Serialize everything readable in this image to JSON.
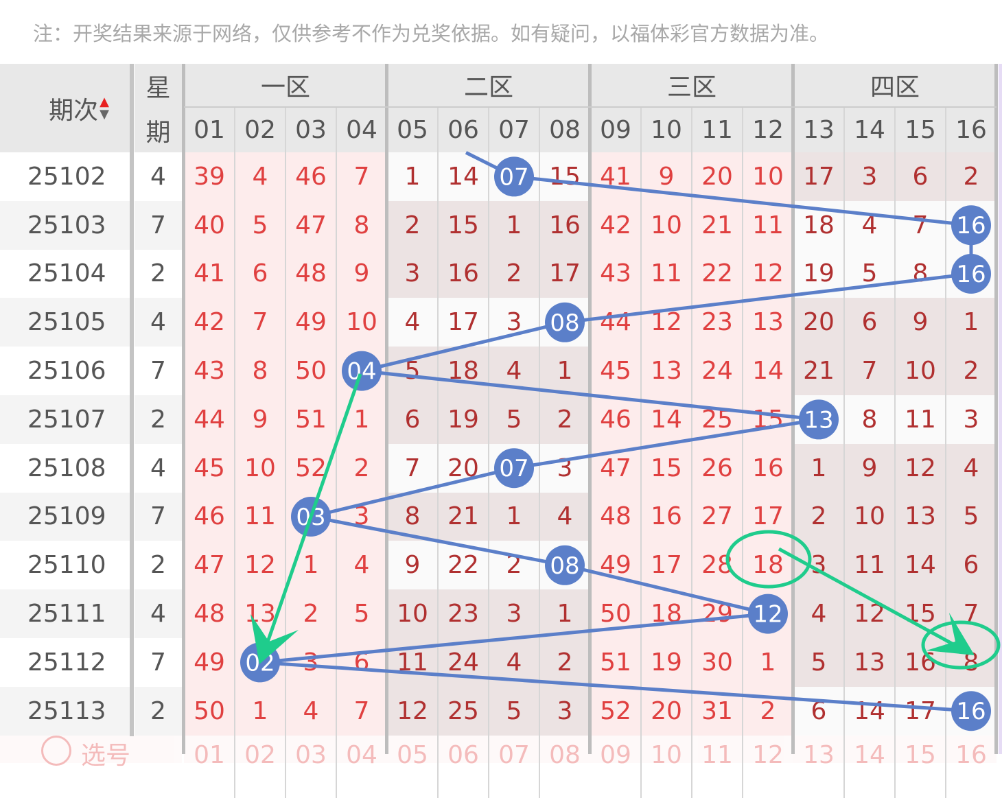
{
  "note": "注：开奖结果来源于网络，仅供参考不作为兑奖依据。如有疑问，以福体彩官方数据为准。",
  "header": {
    "period_label": "期次",
    "week_label_1": "星",
    "week_label_2": "期",
    "zones": [
      "一区",
      "二区",
      "三区",
      "四区"
    ],
    "columns": [
      "01",
      "02",
      "03",
      "04",
      "05",
      "06",
      "07",
      "08",
      "09",
      "10",
      "11",
      "12",
      "13",
      "14",
      "15",
      "16"
    ]
  },
  "rows": [
    {
      "period": "25102",
      "week": "4",
      "cells": [
        "39",
        "4",
        "46",
        "7",
        "1",
        "14",
        "07",
        "15",
        "41",
        "9",
        "20",
        "10",
        "17",
        "3",
        "6",
        "2"
      ],
      "hit": 7
    },
    {
      "period": "25103",
      "week": "7",
      "cells": [
        "40",
        "5",
        "47",
        "8",
        "2",
        "15",
        "1",
        "16",
        "42",
        "10",
        "21",
        "11",
        "18",
        "4",
        "7",
        "16"
      ],
      "hit": 16
    },
    {
      "period": "25104",
      "week": "2",
      "cells": [
        "41",
        "6",
        "48",
        "9",
        "3",
        "16",
        "2",
        "17",
        "43",
        "11",
        "22",
        "12",
        "19",
        "5",
        "8",
        "16"
      ],
      "hit": 16
    },
    {
      "period": "25105",
      "week": "4",
      "cells": [
        "42",
        "7",
        "49",
        "10",
        "4",
        "17",
        "3",
        "08",
        "44",
        "12",
        "23",
        "13",
        "20",
        "6",
        "9",
        "1"
      ],
      "hit": 8
    },
    {
      "period": "25106",
      "week": "7",
      "cells": [
        "43",
        "8",
        "50",
        "04",
        "5",
        "18",
        "4",
        "1",
        "45",
        "13",
        "24",
        "14",
        "21",
        "7",
        "10",
        "2"
      ],
      "hit": 4
    },
    {
      "period": "25107",
      "week": "2",
      "cells": [
        "44",
        "9",
        "51",
        "1",
        "6",
        "19",
        "5",
        "2",
        "46",
        "14",
        "25",
        "15",
        "13",
        "8",
        "11",
        "3"
      ],
      "hit": 13
    },
    {
      "period": "25108",
      "week": "4",
      "cells": [
        "45",
        "10",
        "52",
        "2",
        "7",
        "20",
        "07",
        "3",
        "47",
        "15",
        "26",
        "16",
        "1",
        "9",
        "12",
        "4"
      ],
      "hit": 7
    },
    {
      "period": "25109",
      "week": "7",
      "cells": [
        "46",
        "11",
        "03",
        "3",
        "8",
        "21",
        "1",
        "4",
        "48",
        "16",
        "27",
        "17",
        "2",
        "10",
        "13",
        "5"
      ],
      "hit": 3
    },
    {
      "period": "25110",
      "week": "2",
      "cells": [
        "47",
        "12",
        "1",
        "4",
        "9",
        "22",
        "2",
        "08",
        "49",
        "17",
        "28",
        "18",
        "3",
        "11",
        "14",
        "6"
      ],
      "hit": 8
    },
    {
      "period": "25111",
      "week": "4",
      "cells": [
        "48",
        "13",
        "2",
        "5",
        "10",
        "23",
        "3",
        "1",
        "50",
        "18",
        "29",
        "12",
        "4",
        "12",
        "15",
        "7"
      ],
      "hit": 12
    },
    {
      "period": "25112",
      "week": "7",
      "cells": [
        "49",
        "02",
        "3",
        "6",
        "11",
        "24",
        "4",
        "2",
        "51",
        "19",
        "30",
        "1",
        "5",
        "13",
        "16",
        "8"
      ],
      "hit": 2
    },
    {
      "period": "25113",
      "week": "2",
      "cells": [
        "50",
        "1",
        "4",
        "7",
        "12",
        "25",
        "5",
        "3",
        "52",
        "20",
        "31",
        "2",
        "6",
        "14",
        "17",
        "16"
      ],
      "hit": 16
    }
  ],
  "footer": {
    "select_label": "选号",
    "select_numbers": [
      "01",
      "02",
      "03",
      "04",
      "05",
      "06",
      "07",
      "08",
      "09",
      "10",
      "11",
      "12",
      "13",
      "14",
      "15",
      "16"
    ]
  },
  "colors": {
    "hit_ball": "#5b7fc9",
    "annotation": "#1fcc8c",
    "number_red": "#e04040",
    "sort_up": "#e82020"
  }
}
